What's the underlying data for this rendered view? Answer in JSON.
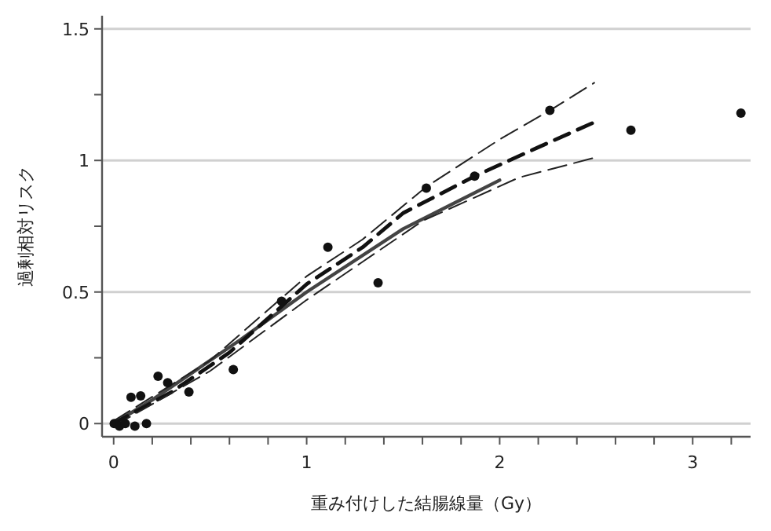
{
  "chart_data": {
    "type": "scatter",
    "xlabel": "重み付けした結腸線量（Gy）",
    "ylabel": "過剰相対リスク",
    "xlim": [
      -0.06,
      3.3
    ],
    "ylim": [
      -0.05,
      1.55
    ],
    "xticks": [
      0,
      {
        "value": 0.2,
        "label": null
      },
      {
        "value": 0.4,
        "label": null
      },
      {
        "value": 0.6,
        "label": null
      },
      {
        "value": 0.8,
        "label": null
      },
      1,
      {
        "value": 1.2,
        "label": null
      },
      {
        "value": 1.4,
        "label": null
      },
      {
        "value": 1.6,
        "label": null
      },
      {
        "value": 1.8,
        "label": null
      },
      2,
      {
        "value": 2.2,
        "label": null
      },
      {
        "value": 2.4,
        "label": null
      },
      {
        "value": 2.6,
        "label": null
      },
      {
        "value": 2.8,
        "label": null
      },
      3,
      {
        "value": 3.2,
        "label": null
      }
    ],
    "yticks": [
      0,
      {
        "value": 0.25,
        "label": null
      },
      0.5,
      {
        "value": 0.75,
        "label": null
      },
      1,
      {
        "value": 1.25,
        "label": null
      },
      1.5
    ],
    "grid": "y",
    "series": [
      {
        "type": "line",
        "color": "#444444",
        "line_style": "solid",
        "x": [
          0,
          0.2,
          0.4,
          0.66,
          1.0,
          1.5,
          2.0
        ],
        "values": [
          0,
          0.09,
          0.19,
          0.32,
          0.5,
          0.74,
          0.925
        ]
      },
      {
        "type": "line",
        "color": "#111111",
        "line_style": "dashed",
        "x": [
          0,
          0.3,
          0.6,
          1.0,
          1.29,
          1.5,
          1.87,
          2.2,
          2.49
        ],
        "values": [
          0,
          0.12,
          0.27,
          0.53,
          0.67,
          0.8,
          0.94,
          1.05,
          1.145
        ]
      },
      {
        "type": "line",
        "color": "#222222",
        "line_style": "dashed",
        "x": [
          0,
          0.5,
          1.0,
          1.29,
          1.62,
          2.0,
          2.26,
          2.49
        ],
        "values": [
          0.01,
          0.24,
          0.56,
          0.7,
          0.9,
          1.08,
          1.19,
          1.295
        ]
      },
      {
        "type": "line",
        "color": "#222222",
        "line_style": "dashed",
        "x": [
          0,
          0.5,
          1.0,
          1.29,
          1.6,
          2.1,
          2.49
        ],
        "values": [
          -0.01,
          0.2,
          0.47,
          0.615,
          0.77,
          0.935,
          1.01
        ]
      },
      {
        "color": "#111111",
        "marker": "circle",
        "x": [
          0.003,
          0.03,
          0.06,
          0.09,
          0.11,
          0.14,
          0.17,
          0.23,
          0.28,
          0.39,
          0.62,
          0.87,
          1.11,
          1.37,
          1.62,
          1.87,
          2.26,
          2.68,
          3.25
        ],
        "values": [
          0,
          -0.01,
          0,
          0.1,
          -0.01,
          0.105,
          0,
          0.18,
          0.155,
          0.12,
          0.205,
          0.465,
          0.67,
          0.535,
          0.895,
          0.94,
          1.19,
          1.115,
          1.18
        ]
      }
    ]
  }
}
